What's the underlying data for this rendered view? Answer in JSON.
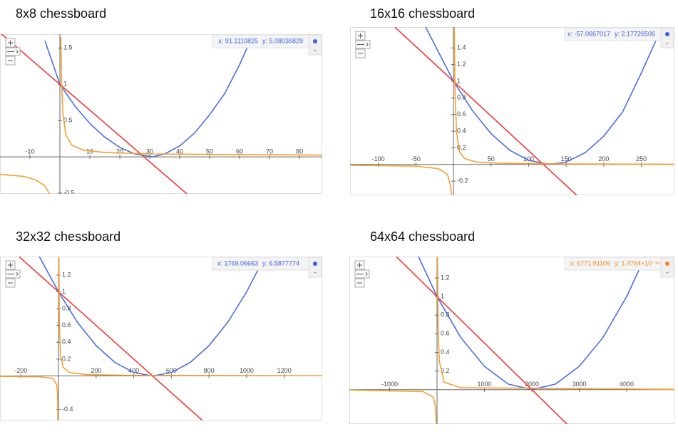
{
  "chart_data": [
    {
      "type": "line",
      "title": "8x8 chessboard",
      "xlim": [
        -20,
        87.6
      ],
      "ylim": [
        -0.51,
        1.69
      ],
      "xticks": [
        -10,
        10,
        20,
        30,
        40,
        50,
        60,
        70,
        80
      ],
      "yticks": [
        -0.5,
        0.5,
        1,
        1.5
      ],
      "readout": {
        "x": "x: 91.1110825",
        "y": "y: 5.08036829",
        "color": "#3a5fe0"
      },
      "series": [
        {
          "color": "#4a6fe3",
          "x": [
            -5,
            0,
            5,
            10,
            15,
            20,
            25,
            31,
            35,
            40,
            45,
            50,
            55,
            60,
            63
          ],
          "values": [
            1.6,
            1,
            0.7,
            0.46,
            0.27,
            0.13,
            0.04,
            0,
            0.04,
            0.15,
            0.33,
            0.58,
            0.87,
            1.27,
            1.55
          ]
        },
        {
          "color": "#f03a3a",
          "x": [
            -20,
            42.4
          ],
          "values": [
            1.71,
            -0.51
          ]
        },
        {
          "color": "#f5a030",
          "x": [
            -20,
            -12,
            -8,
            -5,
            -3.5,
            0,
            0.3,
            0.6,
            1,
            2,
            4,
            8,
            15,
            30,
            60,
            88
          ],
          "values": [
            -0.24,
            -0.27,
            -0.32,
            -0.4,
            -0.51,
            null,
            1.65,
            1,
            0.6,
            0.3,
            0.16,
            0.09,
            0.06,
            0.04,
            0.03,
            0.025
          ]
        }
      ]
    },
    {
      "type": "line",
      "title": "16x16 chessboard",
      "xlim": [
        -137.6,
        294
      ],
      "ylim": [
        -0.37,
        1.65
      ],
      "xticks": [
        -100,
        -50,
        50,
        100,
        150,
        200,
        250
      ],
      "yticks": [
        -0.2,
        0.2,
        0.4,
        0.6,
        0.8,
        1,
        1.2,
        1.4
      ],
      "readout": {
        "x": "x: -57.0667017",
        "y": "y: 2.17726506",
        "color": "#3a5fe0"
      },
      "series": [
        {
          "color": "#4a6fe3",
          "x": [
            -37,
            0,
            25,
            50,
            75,
            100,
            128,
            150,
            175,
            200,
            225,
            250,
            270
          ],
          "values": [
            1.65,
            1,
            0.65,
            0.37,
            0.17,
            0.05,
            0,
            0.03,
            0.14,
            0.34,
            0.63,
            1.1,
            1.5
          ]
        },
        {
          "color": "#f03a3a",
          "x": [
            -78,
            164
          ],
          "values": [
            1.65,
            -0.37
          ]
        },
        {
          "color": "#f5a030",
          "x": [
            -137,
            -50,
            -20,
            -8,
            -4,
            -2.5,
            0,
            1,
            2,
            4,
            8,
            15,
            30,
            60,
            150,
            294
          ],
          "values": [
            -0.01,
            -0.02,
            -0.05,
            -0.12,
            -0.25,
            -0.37,
            null,
            1.65,
            0.9,
            0.4,
            0.15,
            0.07,
            0.03,
            0.015,
            0.006,
            0.003
          ]
        }
      ]
    },
    {
      "type": "line",
      "title": "32x32 chessboard",
      "xlim": [
        -311,
        1402
      ],
      "ylim": [
        -0.53,
        1.42
      ],
      "xticks": [
        -200,
        200,
        400,
        600,
        800,
        1000,
        1200
      ],
      "yticks": [
        -0.4,
        0.2,
        0.4,
        0.6,
        0.8,
        1,
        1.2
      ],
      "readout": {
        "x": "x: 1769.06663",
        "y": "y: 6.5877774",
        "color": "#3a5fe0"
      },
      "series": [
        {
          "color": "#4a6fe3",
          "x": [
            -102,
            0,
            100,
            200,
            300,
            400,
            500,
            600,
            700,
            800,
            900,
            1000,
            1090
          ],
          "values": [
            1.42,
            1,
            0.64,
            0.36,
            0.16,
            0.04,
            0,
            0.04,
            0.16,
            0.36,
            0.64,
            1,
            1.39
          ]
        },
        {
          "color": "#f03a3a",
          "x": [
            -210,
            765
          ],
          "values": [
            1.42,
            -0.53
          ]
        },
        {
          "color": "#f5a030",
          "x": [
            -311,
            -100,
            -30,
            -10,
            -5,
            -3,
            0,
            2,
            4,
            10,
            25,
            60,
            150,
            400,
            1402
          ],
          "values": [
            -0.005,
            -0.01,
            -0.03,
            -0.1,
            -0.2,
            -0.53,
            null,
            1.42,
            0.7,
            0.25,
            0.1,
            0.04,
            0.015,
            0.006,
            0.002
          ]
        }
      ]
    },
    {
      "type": "line",
      "title": "64x64 chessboard",
      "xlim": [
        -1850,
        5008
      ],
      "ylim": [
        -0.37,
        1.43
      ],
      "xticks": [
        -1000,
        1000,
        2000,
        3000,
        4000
      ],
      "yticks": [
        0.2,
        0.4,
        0.6,
        0.8,
        1,
        1.2
      ],
      "readout": {
        "x": "x: 6771.91109",
        "y": "y: 1.4764×10⁻¹⁴",
        "color": "#f08a20"
      },
      "series": [
        {
          "color": "#4a6fe3",
          "x": [
            -392,
            0,
            500,
            1000,
            1500,
            2000,
            2500,
            3000,
            3500,
            4000,
            4392
          ],
          "values": [
            1.43,
            1,
            0.56,
            0.25,
            0.06,
            0,
            0.06,
            0.25,
            0.56,
            1,
            1.43
          ]
        },
        {
          "color": "#f03a3a",
          "x": [
            -860,
            2740
          ],
          "values": [
            1.43,
            -0.37
          ]
        },
        {
          "color": "#f5a030",
          "x": [
            -1850,
            -300,
            -80,
            -30,
            -15,
            0,
            10,
            20,
            50,
            150,
            500,
            5008
          ],
          "values": [
            -0.005,
            -0.02,
            -0.08,
            -0.2,
            -0.37,
            null,
            1.43,
            0.7,
            0.3,
            0.08,
            0.02,
            0.003
          ]
        }
      ]
    }
  ]
}
